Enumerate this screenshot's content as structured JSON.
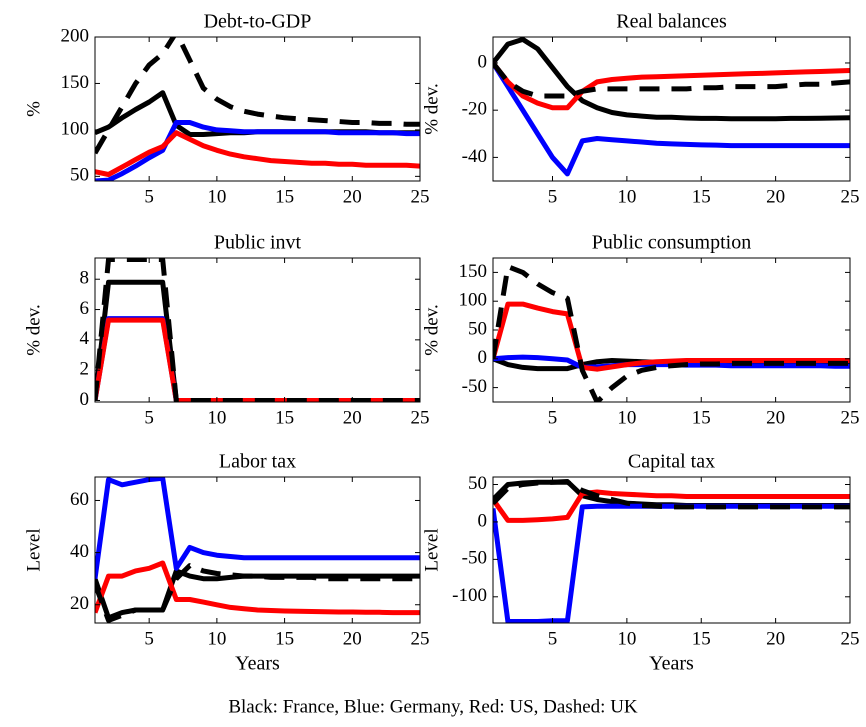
{
  "chart_data": [
    {
      "type": "line",
      "title": "Debt-to-GDP",
      "ylabel": "%",
      "x": [
        1,
        2,
        3,
        4,
        5,
        6,
        7,
        8,
        9,
        10,
        11,
        12,
        13,
        14,
        15,
        16,
        17,
        18,
        19,
        20,
        21,
        22,
        23,
        24,
        25
      ],
      "xlim": [
        1,
        25
      ],
      "xticks": [
        5,
        10,
        15,
        20,
        25
      ],
      "ylim": [
        45,
        200
      ],
      "yticks": [
        50,
        100,
        150,
        200
      ],
      "series": [
        {
          "color": "#000000",
          "dashed": false,
          "values": [
            97,
            103,
            113,
            122,
            130,
            140,
            105,
            95,
            95,
            96,
            97,
            97,
            98,
            98,
            98,
            98,
            98,
            98,
            98,
            98,
            98,
            97,
            97,
            97,
            97
          ]
        },
        {
          "color": "#0000ff",
          "dashed": false,
          "values": [
            45,
            46,
            53,
            61,
            70,
            78,
            108,
            108,
            103,
            100,
            99,
            98,
            98,
            98,
            98,
            98,
            98,
            98,
            97,
            97,
            97,
            97,
            97,
            96,
            96
          ]
        },
        {
          "color": "#ff0000",
          "dashed": false,
          "values": [
            55,
            52,
            60,
            68,
            76,
            82,
            97,
            90,
            83,
            78,
            74,
            71,
            69,
            67,
            66,
            65,
            64,
            64,
            63,
            63,
            62,
            62,
            62,
            62,
            61
          ]
        },
        {
          "color": "#000000",
          "dashed": true,
          "values": [
            75,
            100,
            125,
            150,
            170,
            182,
            205,
            175,
            145,
            133,
            125,
            120,
            117,
            115,
            113,
            112,
            111,
            110,
            109,
            108,
            108,
            107,
            107,
            106,
            106
          ]
        }
      ]
    },
    {
      "type": "line",
      "title": "Real balances",
      "ylabel": "% dev.",
      "x": [
        1,
        2,
        3,
        4,
        5,
        6,
        7,
        8,
        9,
        10,
        11,
        12,
        13,
        14,
        15,
        16,
        17,
        18,
        19,
        20,
        21,
        22,
        23,
        24,
        25
      ],
      "xlim": [
        1,
        25
      ],
      "xticks": [
        5,
        10,
        15,
        20,
        25
      ],
      "ylim": [
        -50,
        11
      ],
      "yticks": [
        -40,
        -20,
        0
      ],
      "series": [
        {
          "color": "#000000",
          "dashed": false,
          "values": [
            0,
            8,
            10,
            6,
            -2,
            -10,
            -16,
            -19,
            -21,
            -22,
            -22.5,
            -23,
            -23,
            -23.3,
            -23.5,
            -23.5,
            -23.6,
            -23.6,
            -23.6,
            -23.6,
            -23.5,
            -23.5,
            -23.4,
            -23.3,
            -23.2
          ]
        },
        {
          "color": "#0000ff",
          "dashed": false,
          "values": [
            0,
            -10,
            -20,
            -30,
            -40,
            -47,
            -33,
            -32,
            -32.5,
            -33,
            -33.5,
            -34,
            -34.3,
            -34.5,
            -34.7,
            -34.8,
            -35,
            -35,
            -35,
            -35,
            -35,
            -35,
            -35,
            -35,
            -35
          ]
        },
        {
          "color": "#ff0000",
          "dashed": false,
          "values": [
            0,
            -8,
            -14,
            -17,
            -19,
            -19,
            -12,
            -8,
            -7,
            -6.5,
            -6,
            -5.8,
            -5.6,
            -5.4,
            -5.2,
            -5,
            -4.8,
            -4.6,
            -4.4,
            -4.2,
            -4,
            -3.8,
            -3.6,
            -3.4,
            -3.2
          ]
        },
        {
          "color": "#000000",
          "dashed": true,
          "values": [
            0,
            -8,
            -12,
            -14,
            -14,
            -14,
            -12,
            -11,
            -11,
            -11,
            -11,
            -11,
            -11,
            -11,
            -10.5,
            -10.5,
            -10,
            -10,
            -10,
            -10,
            -9.5,
            -9,
            -9,
            -8.5,
            -8
          ]
        }
      ]
    },
    {
      "type": "line",
      "title": "Public invt",
      "ylabel": "% dev.",
      "x": [
        1,
        2,
        3,
        4,
        5,
        6,
        7,
        8,
        9,
        10,
        11,
        12,
        13,
        14,
        15,
        16,
        17,
        18,
        19,
        20,
        21,
        22,
        23,
        24,
        25
      ],
      "xlim": [
        1,
        25
      ],
      "xticks": [
        5,
        10,
        15,
        20,
        25
      ],
      "ylim": [
        -0.1,
        9.4
      ],
      "yticks": [
        0,
        2,
        4,
        6,
        8
      ],
      "series": [
        {
          "color": "#000000",
          "dashed": false,
          "values": [
            0,
            7.8,
            7.8,
            7.8,
            7.8,
            7.8,
            0,
            0,
            0,
            0,
            0,
            0,
            0,
            0,
            0,
            0,
            0,
            0,
            0,
            0,
            0,
            0,
            0,
            0,
            0
          ]
        },
        {
          "color": "#0000ff",
          "dashed": false,
          "values": [
            0,
            5.4,
            5.4,
            5.4,
            5.4,
            5.4,
            0,
            0,
            0,
            0,
            0,
            0,
            0,
            0,
            0,
            0,
            0,
            0,
            0,
            0,
            0,
            0,
            0,
            0,
            0
          ]
        },
        {
          "color": "#ff0000",
          "dashed": false,
          "values": [
            0,
            5.3,
            5.3,
            5.3,
            5.3,
            5.3,
            0,
            0,
            0,
            0,
            0,
            0,
            0,
            0,
            0,
            0,
            0,
            0,
            0,
            0,
            0,
            0,
            0,
            0,
            0
          ]
        },
        {
          "color": "#000000",
          "dashed": true,
          "values": [
            0,
            9.3,
            9.3,
            9.3,
            9.3,
            9.3,
            0,
            0,
            0,
            0,
            0,
            0,
            0,
            0,
            0,
            0,
            0,
            0,
            0,
            0,
            0,
            0,
            0,
            0,
            0
          ]
        }
      ]
    },
    {
      "type": "line",
      "title": "Public consumption",
      "ylabel": "% dev.",
      "x": [
        1,
        2,
        3,
        4,
        5,
        6,
        7,
        8,
        9,
        10,
        11,
        12,
        13,
        14,
        15,
        16,
        17,
        18,
        19,
        20,
        21,
        22,
        23,
        24,
        25
      ],
      "xlim": [
        1,
        25
      ],
      "xticks": [
        5,
        10,
        15,
        20,
        25
      ],
      "ylim": [
        -75,
        175
      ],
      "yticks": [
        -50,
        0,
        50,
        100,
        150
      ],
      "series": [
        {
          "color": "#000000",
          "dashed": false,
          "values": [
            0,
            -10,
            -15,
            -17,
            -17,
            -17,
            -10,
            -5,
            -3,
            -4,
            -5,
            -6,
            -7,
            -7,
            -8,
            -8,
            -8,
            -8,
            -8,
            -8,
            -8,
            -8,
            -8,
            -8,
            -8
          ]
        },
        {
          "color": "#0000ff",
          "dashed": false,
          "values": [
            0,
            2,
            3,
            2,
            0,
            -2,
            -15,
            -14,
            -12,
            -10,
            -10,
            -10,
            -10,
            -11,
            -11,
            -11,
            -12,
            -12,
            -12,
            -12,
            -12,
            -12,
            -12,
            -13,
            -13
          ]
        },
        {
          "color": "#ff0000",
          "dashed": false,
          "values": [
            0,
            95,
            95,
            88,
            82,
            78,
            -15,
            -18,
            -14,
            -10,
            -7,
            -5,
            -4,
            -3,
            -3,
            -3,
            -3,
            -3,
            -3,
            -3,
            -3,
            -3,
            -3,
            -3,
            -3
          ]
        },
        {
          "color": "#000000",
          "dashed": true,
          "values": [
            0,
            160,
            150,
            130,
            115,
            105,
            -20,
            -75,
            -50,
            -30,
            -20,
            -15,
            -12,
            -10,
            -9,
            -9,
            -8,
            -8,
            -8,
            -8,
            -8,
            -8,
            -8,
            -8,
            -8
          ]
        }
      ]
    },
    {
      "type": "line",
      "title": "Labor tax",
      "ylabel": "Level",
      "xlabel": "Years",
      "x": [
        1,
        2,
        3,
        4,
        5,
        6,
        7,
        8,
        9,
        10,
        11,
        12,
        13,
        14,
        15,
        16,
        17,
        18,
        19,
        20,
        21,
        22,
        23,
        24,
        25
      ],
      "xlim": [
        1,
        25
      ],
      "xticks": [
        5,
        10,
        15,
        20,
        25
      ],
      "ylim": [
        13,
        69
      ],
      "yticks": [
        20,
        40,
        60
      ],
      "series": [
        {
          "color": "#000000",
          "dashed": false,
          "values": [
            30,
            15,
            17,
            18,
            18,
            18,
            33,
            31,
            30,
            30,
            30.5,
            31,
            31,
            31,
            31,
            31,
            31,
            31,
            31,
            31,
            31,
            31,
            31,
            31,
            31
          ]
        },
        {
          "color": "#0000ff",
          "dashed": false,
          "values": [
            30,
            68,
            66,
            67,
            68,
            68.5,
            34,
            42,
            40,
            39,
            38.5,
            38,
            38,
            38,
            38,
            38,
            38,
            38,
            38,
            38,
            38,
            38,
            38,
            38,
            38
          ]
        },
        {
          "color": "#ff0000",
          "dashed": false,
          "values": [
            17,
            31,
            31,
            33,
            34,
            36,
            22,
            22,
            21,
            20,
            19,
            18.5,
            18,
            17.8,
            17.6,
            17.5,
            17.4,
            17.3,
            17.2,
            17.2,
            17.1,
            17.1,
            17,
            17,
            17
          ]
        },
        {
          "color": "#000000",
          "dashed": true,
          "values": [
            28,
            14,
            16,
            18,
            18,
            18,
            30,
            35,
            33,
            32,
            31.5,
            31,
            31,
            30.5,
            30.5,
            30.5,
            30.5,
            30,
            30,
            30,
            30,
            30,
            30,
            30,
            30
          ]
        }
      ]
    },
    {
      "type": "line",
      "title": "Capital tax",
      "ylabel": "Level",
      "xlabel": "Years",
      "x": [
        1,
        2,
        3,
        4,
        5,
        6,
        7,
        8,
        9,
        10,
        11,
        12,
        13,
        14,
        15,
        16,
        17,
        18,
        19,
        20,
        21,
        22,
        23,
        24,
        25
      ],
      "xlim": [
        1,
        25
      ],
      "xticks": [
        5,
        10,
        15,
        20,
        25
      ],
      "ylim": [
        -135,
        60
      ],
      "yticks": [
        -100,
        -50,
        0,
        50
      ],
      "series": [
        {
          "color": "#000000",
          "dashed": false,
          "values": [
            30,
            50,
            52,
            53,
            53,
            54,
            35,
            30,
            27,
            25,
            24,
            23,
            23,
            22,
            22,
            22,
            22,
            22,
            22,
            22,
            22,
            22,
            22,
            22,
            22
          ]
        },
        {
          "color": "#0000ff",
          "dashed": false,
          "values": [
            18,
            -133,
            -133,
            -133,
            -132,
            -132,
            20,
            21,
            21,
            21,
            21,
            21,
            21,
            21,
            21,
            21,
            21,
            21,
            21,
            21,
            21,
            21,
            21,
            21,
            21
          ]
        },
        {
          "color": "#ff0000",
          "dashed": false,
          "values": [
            30,
            2,
            2,
            3,
            4,
            6,
            38,
            40,
            38,
            37,
            36,
            35,
            35,
            34,
            34,
            34,
            34,
            34,
            34,
            34,
            34,
            34,
            34,
            34,
            34
          ]
        },
        {
          "color": "#000000",
          "dashed": true,
          "values": [
            25,
            45,
            50,
            52,
            53,
            53,
            42,
            35,
            30,
            25,
            22,
            21,
            20,
            20,
            20,
            20,
            20,
            20,
            20,
            20,
            20,
            20,
            20,
            20,
            20
          ]
        }
      ]
    }
  ],
  "caption": "Black: France, Blue: Germany, Red: US, Dashed: UK"
}
